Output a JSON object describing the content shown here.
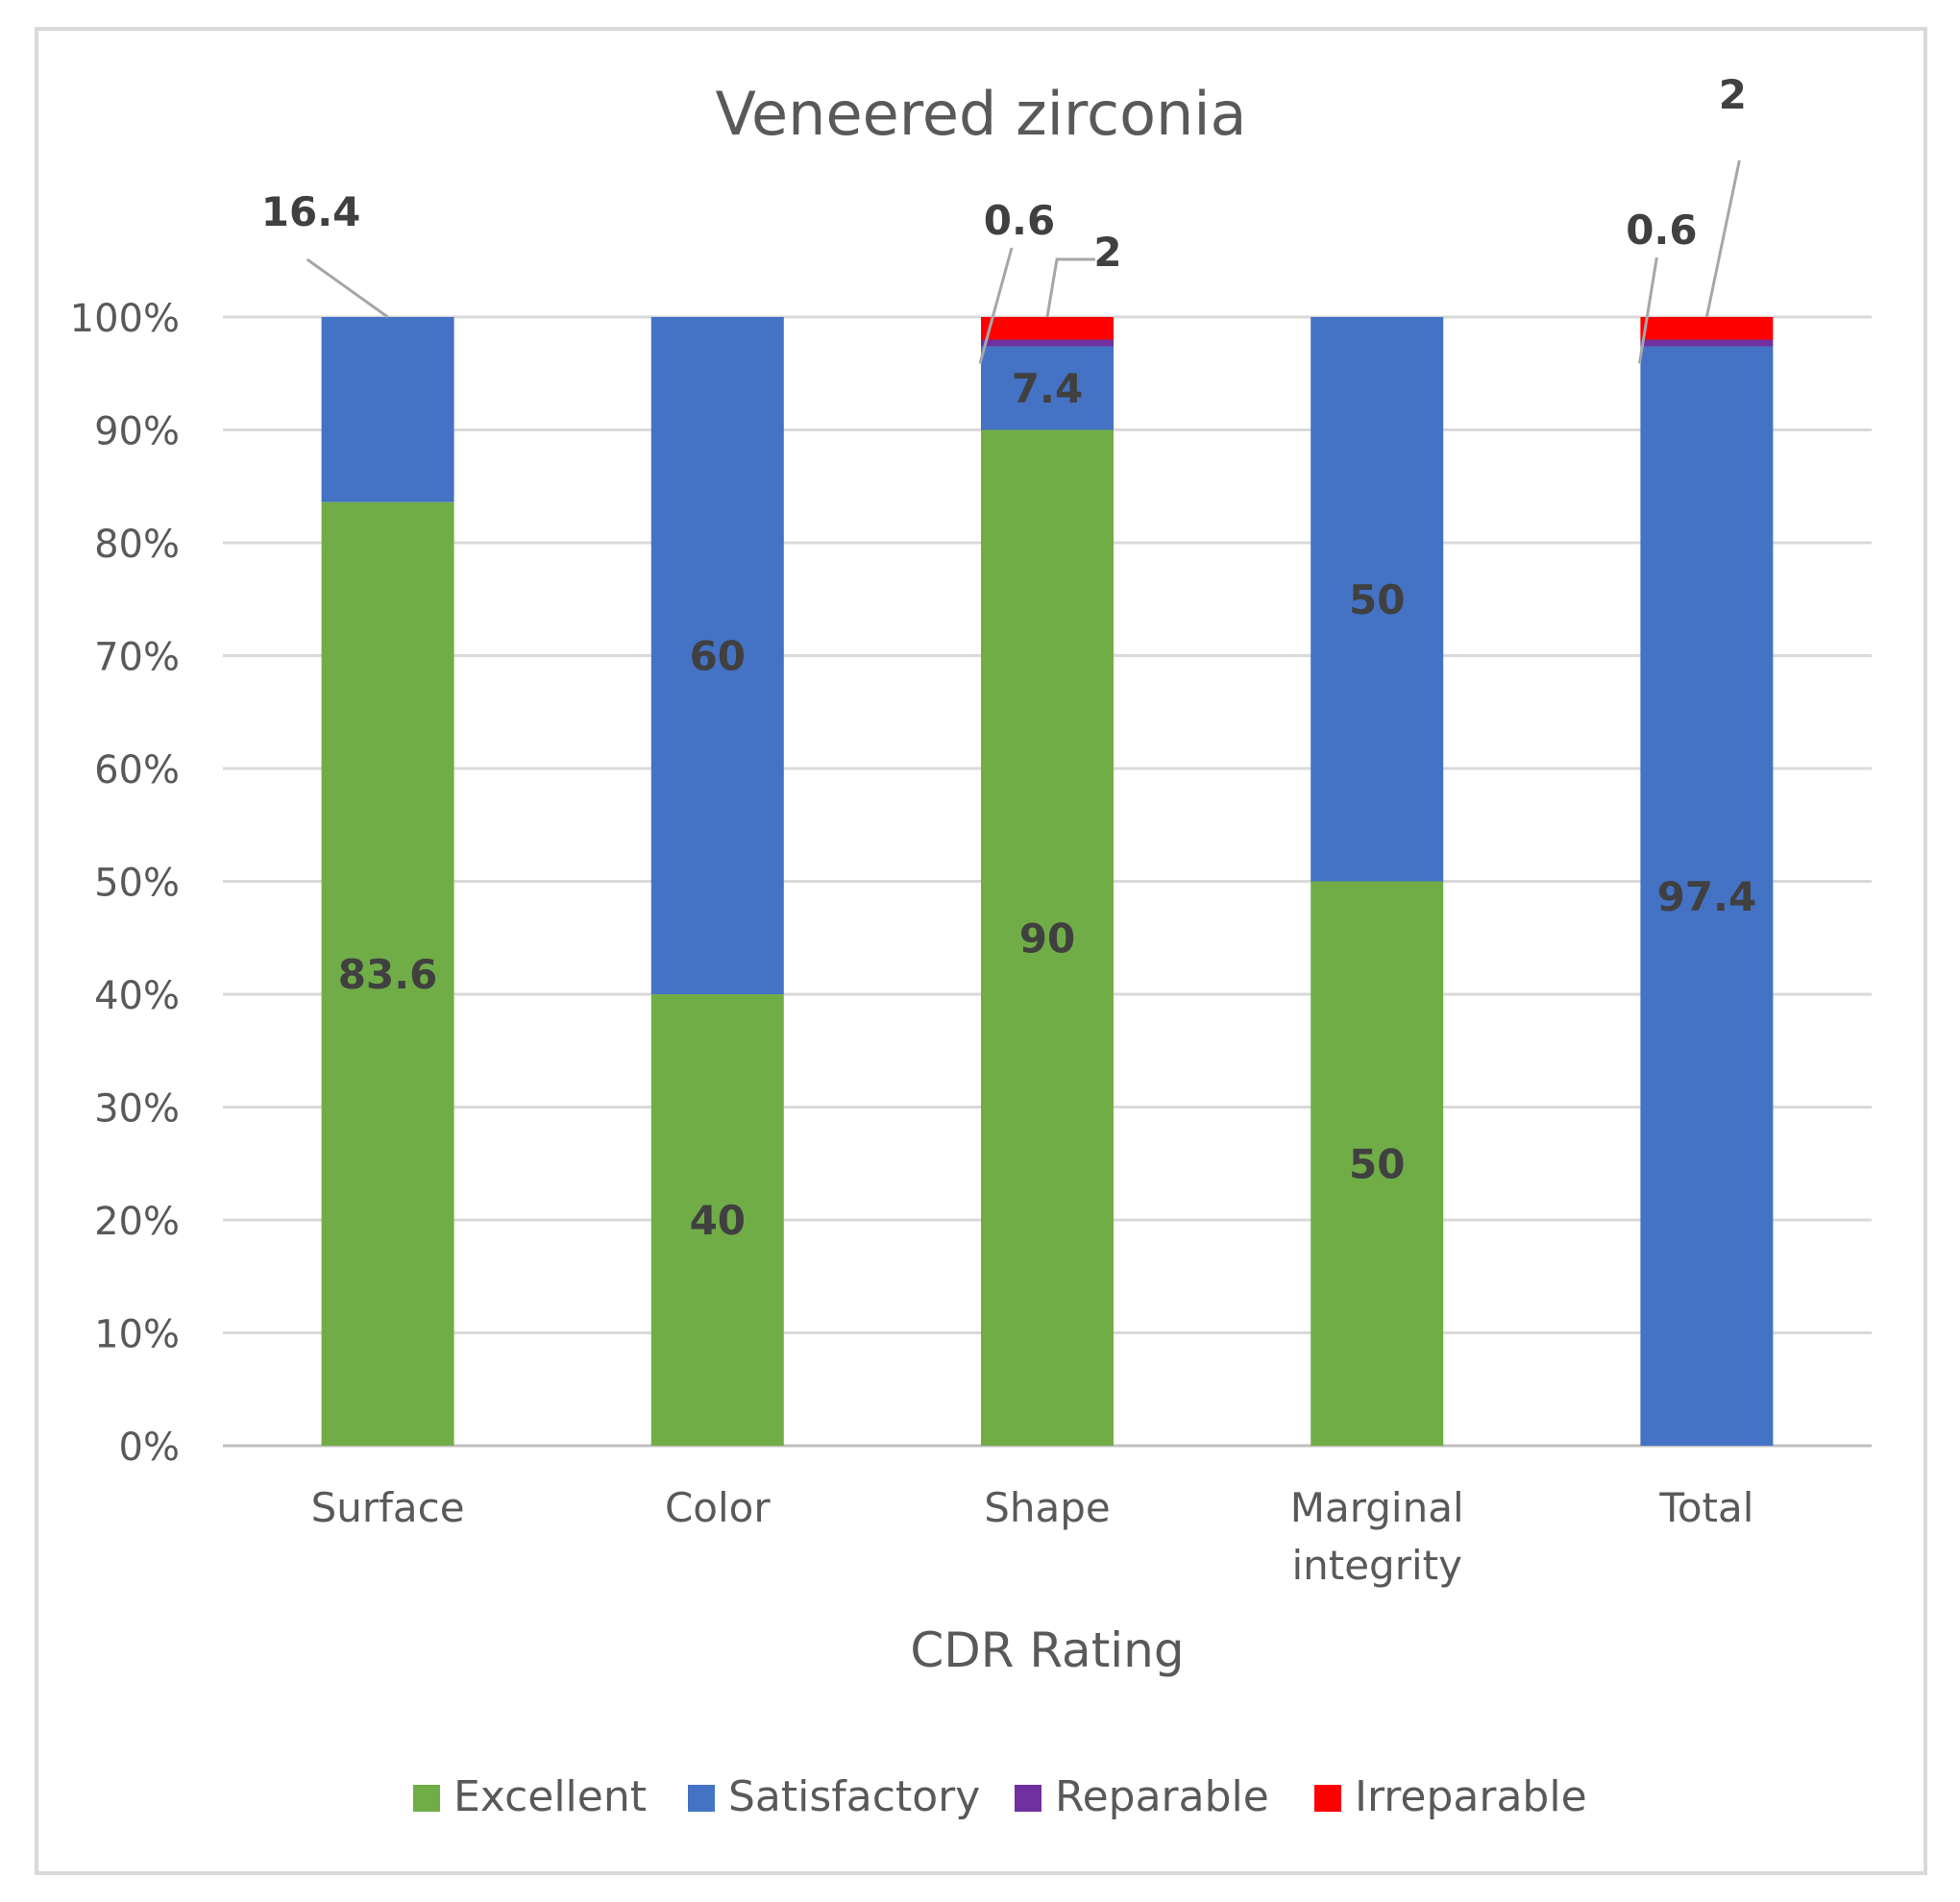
{
  "chart_data": {
    "type": "bar",
    "stacked": true,
    "title": "Veneered zirconia",
    "xlabel": "CDR Rating",
    "ylabel": "",
    "ylim": [
      0,
      100
    ],
    "y_ticks": [
      "0%",
      "10%",
      "20%",
      "30%",
      "40%",
      "50%",
      "60%",
      "70%",
      "80%",
      "90%",
      "100%"
    ],
    "grid": true,
    "legend_position": "bottom",
    "categories": [
      "Surface",
      "Color",
      "Shape",
      "Marginal integrity",
      "Total"
    ],
    "category_lines": [
      [
        "Surface"
      ],
      [
        "Color"
      ],
      [
        "Shape"
      ],
      [
        "Marginal",
        "integrity"
      ],
      [
        "Total"
      ]
    ],
    "series": [
      {
        "name": "Excellent",
        "color": "#70ad47",
        "values": [
          83.6,
          40,
          90,
          50,
          0
        ]
      },
      {
        "name": "Satisfactory",
        "color": "#4472c4",
        "values": [
          16.4,
          60,
          7.4,
          50,
          97.4
        ]
      },
      {
        "name": "Reparable",
        "color": "#7030a0",
        "values": [
          0,
          0,
          0.6,
          0,
          0.6
        ]
      },
      {
        "name": "Irreparable",
        "color": "#ff0000",
        "values": [
          0,
          0,
          2,
          0,
          2
        ]
      }
    ],
    "data_labels": [
      {
        "category": "Surface",
        "series": "Excellent",
        "text": "83.6",
        "callout": false
      },
      {
        "category": "Surface",
        "series": "Satisfactory",
        "text": "16.4",
        "callout": true
      },
      {
        "category": "Color",
        "series": "Excellent",
        "text": "40",
        "callout": false
      },
      {
        "category": "Color",
        "series": "Satisfactory",
        "text": "60",
        "callout": false
      },
      {
        "category": "Shape",
        "series": "Excellent",
        "text": "90",
        "callout": false
      },
      {
        "category": "Shape",
        "series": "Satisfactory",
        "text": "7.4",
        "callout": false
      },
      {
        "category": "Shape",
        "series": "Reparable",
        "text": "0.6",
        "callout": true
      },
      {
        "category": "Shape",
        "series": "Irreparable",
        "text": "2",
        "callout": true
      },
      {
        "category": "Marginal integrity",
        "series": "Excellent",
        "text": "50",
        "callout": false
      },
      {
        "category": "Marginal integrity",
        "series": "Satisfactory",
        "text": "50",
        "callout": false
      },
      {
        "category": "Total",
        "series": "Satisfactory",
        "text": "97.4",
        "callout": false
      },
      {
        "category": "Total",
        "series": "Reparable",
        "text": "0.6",
        "callout": true
      },
      {
        "category": "Total",
        "series": "Irreparable",
        "text": "2",
        "callout": true
      }
    ]
  }
}
